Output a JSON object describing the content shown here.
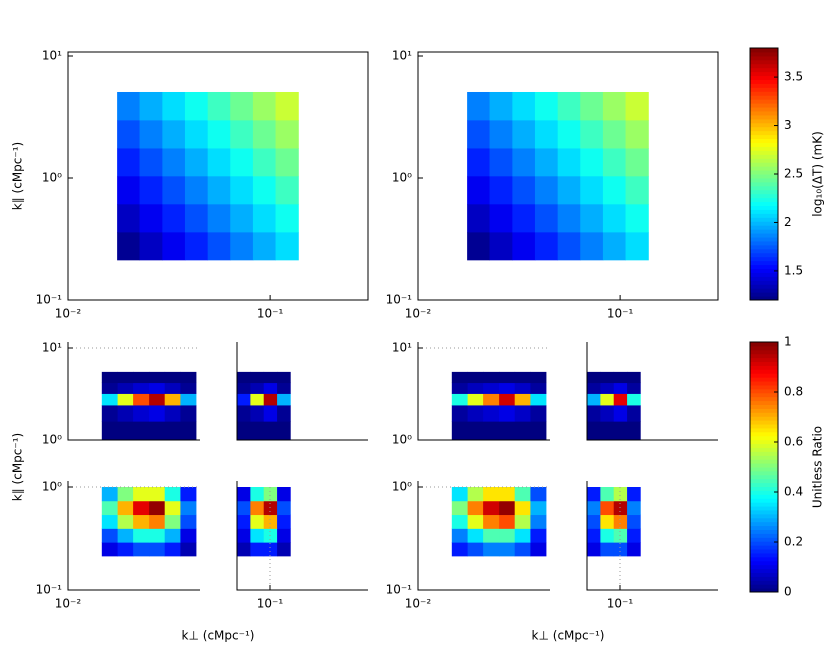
{
  "chart_data": [
    {
      "type": "heatmap",
      "ylabel": "k∥  (cMpc⁻¹)",
      "log": true,
      "colormap": "jet",
      "clim": [
        1.2,
        3.8
      ],
      "xlim": [
        0.01,
        0.305
      ],
      "ylim": [
        0.1,
        10
      ],
      "xticks": [
        {
          "value": 0.01,
          "label": "10⁻²"
        },
        {
          "value": 0.1,
          "label": "10⁻¹"
        }
      ],
      "yticks": [
        {
          "value": 0.1,
          "label": "10⁻¹"
        },
        {
          "value": 1,
          "label": "10⁰"
        },
        {
          "value": 10,
          "label": "10¹"
        }
      ],
      "x_edges": [
        0.0175,
        0.0226,
        0.0293,
        0.0379,
        0.0491,
        0.0635,
        0.0822,
        0.1064,
        0.138
      ],
      "y_edges": [
        0.213,
        0.361,
        0.613,
        1.04,
        1.76,
        2.99,
        5.07
      ],
      "z": [
        [
          1.25,
          1.37,
          1.49,
          1.61,
          1.73,
          1.85,
          1.97,
          2.09
        ],
        [
          1.37,
          1.49,
          1.61,
          1.73,
          1.85,
          1.97,
          2.09,
          2.21
        ],
        [
          1.49,
          1.61,
          1.73,
          1.85,
          1.97,
          2.09,
          2.21,
          2.33
        ],
        [
          1.61,
          1.73,
          1.85,
          1.97,
          2.09,
          2.21,
          2.33,
          2.45
        ],
        [
          1.73,
          1.85,
          1.97,
          2.09,
          2.21,
          2.33,
          2.45,
          2.57
        ],
        [
          1.85,
          1.97,
          2.09,
          2.21,
          2.33,
          2.45,
          2.57,
          2.69
        ]
      ]
    },
    {
      "type": "heatmap",
      "log": true,
      "colormap": "jet",
      "clim": [
        1.2,
        3.8
      ],
      "xlim": [
        0.01,
        0.305
      ],
      "ylim": [
        0.1,
        10
      ],
      "xticks": [
        {
          "value": 0.01,
          "label": "10⁻²"
        },
        {
          "value": 0.1,
          "label": "10⁻¹"
        }
      ],
      "yticks": [
        {
          "value": 0.1,
          "label": "10⁻¹"
        },
        {
          "value": 1,
          "label": "10⁰"
        },
        {
          "value": 10,
          "label": "10¹"
        }
      ],
      "x_edges": [
        0.0175,
        0.0226,
        0.0293,
        0.0379,
        0.0491,
        0.0635,
        0.0822,
        0.1064,
        0.138
      ],
      "y_edges": [
        0.213,
        0.361,
        0.613,
        1.04,
        1.76,
        2.99,
        5.07
      ],
      "z": [
        [
          1.25,
          1.37,
          1.49,
          1.61,
          1.73,
          1.85,
          1.97,
          2.09
        ],
        [
          1.37,
          1.49,
          1.61,
          1.73,
          1.85,
          1.97,
          2.09,
          2.21
        ],
        [
          1.49,
          1.61,
          1.73,
          1.85,
          1.97,
          2.09,
          2.21,
          2.33
        ],
        [
          1.61,
          1.73,
          1.85,
          1.97,
          2.09,
          2.21,
          2.33,
          2.45
        ],
        [
          1.73,
          1.85,
          1.97,
          2.09,
          2.21,
          2.33,
          2.45,
          2.57
        ],
        [
          1.85,
          1.97,
          2.09,
          2.21,
          2.33,
          2.45,
          2.57,
          2.69
        ]
      ]
    },
    {
      "type": "colorbar",
      "label": "log₁₀(ΔT)  (mK)",
      "colormap": "jet",
      "lim": [
        1.2,
        3.8
      ],
      "ticks": [
        1.5,
        2,
        2.5,
        3,
        3.5
      ]
    },
    {
      "type": "heatmap-grid",
      "ylabel": "k∥  (cMpc⁻¹)",
      "xlabel": "k⊥  (cMpc⁻¹)",
      "log": true,
      "grid": true,
      "colormap": "jet",
      "clim": [
        0,
        1
      ],
      "panels": [
        {
          "xlim": [
            0.01,
            0.045
          ],
          "ylim": [
            1,
            10
          ],
          "yticks": [
            {
              "value": 1,
              "label": "10⁰"
            },
            {
              "value": 10,
              "label": "10¹"
            }
          ],
          "x_edges": [
            0.0147,
            0.0176,
            0.021,
            0.0252,
            0.0301,
            0.036,
            0.043
          ],
          "y_edges": [
            1,
            1.6,
            2.4,
            3.2,
            4.2,
            5.5
          ],
          "z": [
            [
              0,
              0,
              0,
              0,
              0,
              0
            ],
            [
              0.02,
              0.05,
              0.08,
              0.1,
              0.06,
              0.02
            ],
            [
              0.35,
              0.6,
              0.8,
              0.95,
              0.7,
              0.3
            ],
            [
              0.02,
              0.05,
              0.08,
              0.1,
              0.06,
              0.02
            ],
            [
              0,
              0,
              0,
              0,
              0,
              0
            ]
          ]
        },
        {
          "xlim": [
            0.0687,
            0.305
          ],
          "ylim": [
            1,
            10
          ],
          "x_edges": [
            0.0687,
            0.08,
            0.0931,
            0.1084,
            0.126
          ],
          "y_edges": [
            1,
            1.6,
            2.4,
            3.2,
            4.2,
            5.5
          ],
          "z": [
            [
              0,
              0,
              0,
              0
            ],
            [
              0.02,
              0.05,
              0.1,
              0.02
            ],
            [
              0.15,
              0.6,
              0.95,
              0.3
            ],
            [
              0.02,
              0.05,
              0.1,
              0.02
            ],
            [
              0,
              0,
              0,
              0
            ]
          ]
        },
        {
          "xlim": [
            0.01,
            0.045
          ],
          "ylim": [
            0.1,
            1
          ],
          "xticks": [
            {
              "value": 0.01,
              "label": "10⁻²"
            }
          ],
          "yticks": [
            {
              "value": 0.1,
              "label": "10⁻¹"
            },
            {
              "value": 1,
              "label": "10⁰"
            }
          ],
          "x_edges": [
            0.0147,
            0.0176,
            0.021,
            0.0252,
            0.0301,
            0.036,
            0.043
          ],
          "y_edges": [
            0.214,
            0.291,
            0.396,
            0.539,
            0.734,
            1
          ],
          "z": [
            [
              0.1,
              0.15,
              0.2,
              0.2,
              0.15,
              0.05
            ],
            [
              0.2,
              0.3,
              0.4,
              0.4,
              0.3,
              0.1
            ],
            [
              0.35,
              0.55,
              0.7,
              0.75,
              0.5,
              0.2
            ],
            [
              0.45,
              0.7,
              0.9,
              0.98,
              0.6,
              0.25
            ],
            [
              0.3,
              0.5,
              0.6,
              0.6,
              0.4,
              0.15
            ]
          ]
        },
        {
          "xlim": [
            0.0687,
            0.305
          ],
          "ylim": [
            0.1,
            1
          ],
          "xticks": [
            {
              "value": 0.1,
              "label": "10⁻¹"
            }
          ],
          "x_edges": [
            0.0687,
            0.08,
            0.0931,
            0.1084,
            0.126
          ],
          "y_edges": [
            0.214,
            0.291,
            0.396,
            0.539,
            0.734,
            1
          ],
          "z": [
            [
              0.05,
              0.15,
              0.15,
              0.05
            ],
            [
              0.1,
              0.35,
              0.4,
              0.1
            ],
            [
              0.15,
              0.6,
              0.7,
              0.15
            ],
            [
              0.2,
              0.75,
              0.95,
              0.2
            ],
            [
              0.1,
              0.4,
              0.5,
              0.1
            ]
          ]
        }
      ]
    },
    {
      "type": "heatmap-grid",
      "xlabel": "k⊥  (cMpc⁻¹)",
      "log": true,
      "grid": true,
      "colormap": "jet",
      "clim": [
        0,
        1
      ],
      "panels": [
        {
          "xlim": [
            0.01,
            0.045
          ],
          "ylim": [
            1,
            10
          ],
          "yticks": [
            {
              "value": 1,
              "label": "10⁰"
            },
            {
              "value": 10,
              "label": "10¹"
            }
          ],
          "x_edges": [
            0.0147,
            0.0176,
            0.021,
            0.0252,
            0.0301,
            0.036,
            0.043
          ],
          "y_edges": [
            1,
            1.6,
            2.4,
            3.2,
            4.2,
            5.5
          ],
          "z": [
            [
              0,
              0,
              0,
              0,
              0,
              0
            ],
            [
              0.03,
              0.06,
              0.08,
              0.1,
              0.07,
              0.03
            ],
            [
              0.4,
              0.6,
              0.75,
              0.92,
              0.7,
              0.35
            ],
            [
              0.03,
              0.06,
              0.08,
              0.1,
              0.07,
              0.03
            ],
            [
              0,
              0,
              0,
              0,
              0,
              0
            ]
          ]
        },
        {
          "xlim": [
            0.0687,
            0.305
          ],
          "ylim": [
            1,
            10
          ],
          "x_edges": [
            0.0687,
            0.08,
            0.0931,
            0.1084,
            0.126
          ],
          "y_edges": [
            1,
            1.6,
            2.4,
            3.2,
            4.2,
            5.5
          ],
          "z": [
            [
              0,
              0,
              0,
              0
            ],
            [
              0.03,
              0.06,
              0.1,
              0.03
            ],
            [
              0.3,
              0.6,
              0.9,
              0.4
            ],
            [
              0.03,
              0.06,
              0.1,
              0.03
            ],
            [
              0,
              0,
              0,
              0
            ]
          ]
        },
        {
          "xlim": [
            0.01,
            0.045
          ],
          "ylim": [
            0.1,
            1
          ],
          "xticks": [
            {
              "value": 0.01,
              "label": "10⁻²"
            }
          ],
          "yticks": [
            {
              "value": 0.1,
              "label": "10⁻¹"
            },
            {
              "value": 1,
              "label": "10⁰"
            }
          ],
          "x_edges": [
            0.0147,
            0.0176,
            0.021,
            0.0252,
            0.0301,
            0.036,
            0.043
          ],
          "y_edges": [
            0.214,
            0.291,
            0.396,
            0.539,
            0.734,
            1
          ],
          "z": [
            [
              0.15,
              0.2,
              0.25,
              0.25,
              0.2,
              0.1
            ],
            [
              0.25,
              0.35,
              0.45,
              0.45,
              0.35,
              0.15
            ],
            [
              0.4,
              0.6,
              0.75,
              0.8,
              0.55,
              0.25
            ],
            [
              0.5,
              0.75,
              0.92,
              0.98,
              0.65,
              0.3
            ],
            [
              0.35,
              0.55,
              0.65,
              0.65,
              0.45,
              0.2
            ]
          ]
        },
        {
          "xlim": [
            0.0687,
            0.305
          ],
          "ylim": [
            0.1,
            1
          ],
          "xticks": [
            {
              "value": 0.1,
              "label": "10⁻¹"
            }
          ],
          "x_edges": [
            0.0687,
            0.08,
            0.0931,
            0.1084,
            0.126
          ],
          "y_edges": [
            0.214,
            0.291,
            0.396,
            0.539,
            0.734,
            1
          ],
          "z": [
            [
              0.1,
              0.2,
              0.2,
              0.1
            ],
            [
              0.15,
              0.4,
              0.45,
              0.15
            ],
            [
              0.2,
              0.65,
              0.75,
              0.2
            ],
            [
              0.25,
              0.8,
              0.95,
              0.25
            ],
            [
              0.15,
              0.45,
              0.55,
              0.15
            ]
          ]
        }
      ]
    },
    {
      "type": "colorbar",
      "label": "Unitless Ratio",
      "colormap": "jet",
      "lim": [
        0,
        1
      ],
      "ticks": [
        0,
        0.2,
        0.4,
        0.6,
        0.8,
        1
      ]
    }
  ]
}
